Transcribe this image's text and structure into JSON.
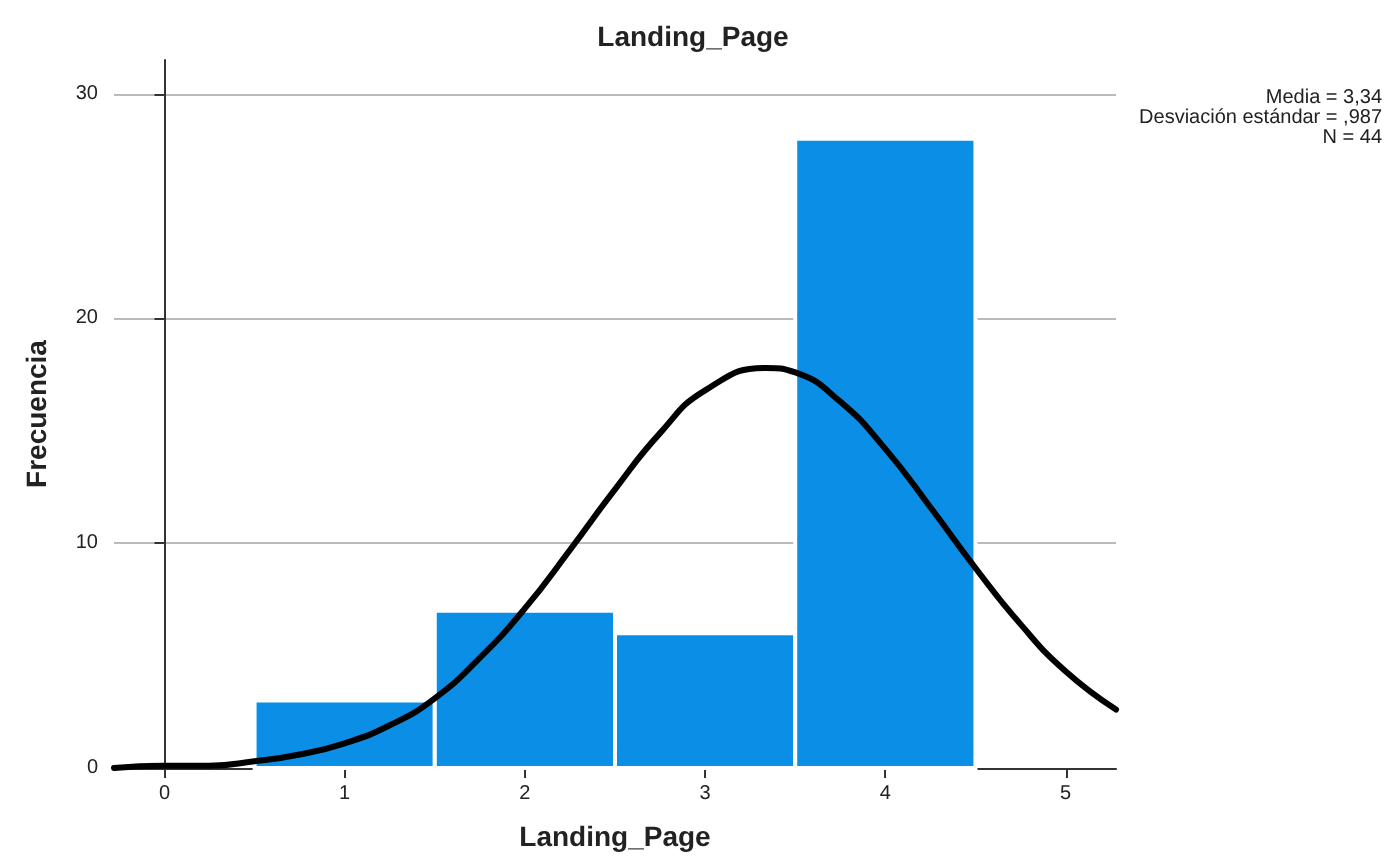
{
  "chart_data": {
    "type": "histogram",
    "title": "Landing_Page",
    "xlabel": "Landing_Page",
    "ylabel": "Frecuencia",
    "bins": [
      0.5,
      1.5,
      2.5,
      3.5,
      4.5
    ],
    "values": [
      3,
      7,
      6,
      28
    ],
    "color": "#0b8ee6",
    "series": [
      {
        "type": "line",
        "color": "#000000",
        "x": [
          -0.28,
          0,
          0.25,
          0.5,
          0.75,
          1,
          1.25,
          1.5,
          1.75,
          2,
          2.25,
          2.5,
          2.75,
          3,
          3.34,
          3.5,
          3.75,
          4,
          4.25,
          4.5,
          4.75,
          5,
          5.28
        ],
        "values": [
          0,
          0.1,
          0.1,
          0.3,
          0.6,
          1.1,
          1.9,
          3.1,
          4.9,
          7.1,
          9.7,
          12.4,
          14.9,
          16.8,
          17.8,
          17.6,
          16.3,
          14.2,
          11.6,
          8.9,
          6.4,
          4.3,
          2.6
        ]
      }
    ],
    "xlim": [
      -0.28,
      5.28
    ],
    "xticks": [
      0,
      1,
      2,
      3,
      4,
      5
    ],
    "ylim": [
      0,
      31.5
    ],
    "yticks": [
      0,
      10,
      20,
      30
    ],
    "grid": "y",
    "annotations": [
      "Media = 3,34",
      "Desviación estándar = ,987",
      "N = 44"
    ]
  }
}
